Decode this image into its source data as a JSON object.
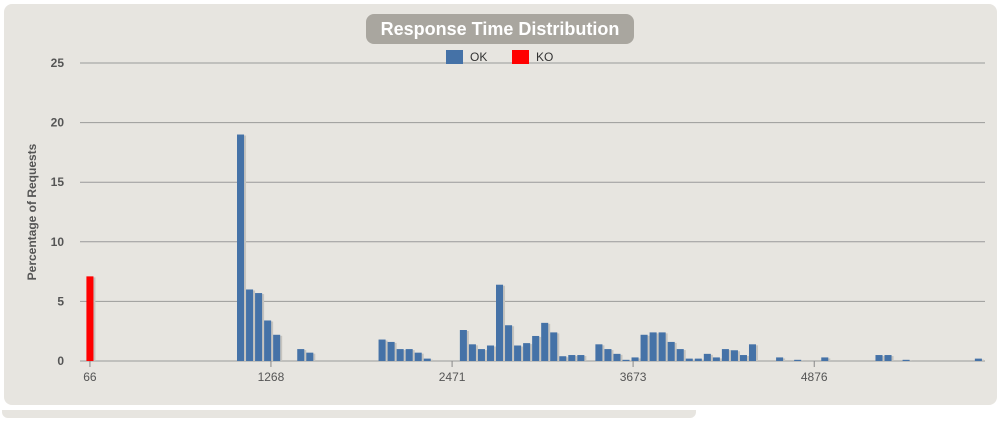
{
  "chart_data": {
    "type": "bar",
    "title": "Response Time Distribution",
    "ylabel": "Percentage of Requests",
    "xlabel": "",
    "ylim": [
      0,
      25
    ],
    "yticks": [
      "0",
      "5",
      "10",
      "15",
      "20",
      "25"
    ],
    "xtick_labels": [
      "66",
      "1268",
      "2471",
      "3673",
      "4876"
    ],
    "xtick_values": [
      66,
      1268,
      2471,
      3673,
      4876
    ],
    "xlim": [
      0,
      6010
    ],
    "bin_width": 60,
    "grid": true,
    "legend_position": "top-center",
    "series": [
      {
        "name": "OK",
        "color": "#4572a7",
        "points": [
          [
            1066,
            19
          ],
          [
            1126,
            6
          ],
          [
            1186,
            5.7
          ],
          [
            1246,
            3.4
          ],
          [
            1306,
            2.2
          ],
          [
            1466,
            1.0
          ],
          [
            1526,
            0.7
          ],
          [
            2006,
            1.8
          ],
          [
            2066,
            1.6
          ],
          [
            2126,
            1.0
          ],
          [
            2186,
            1.0
          ],
          [
            2246,
            0.7
          ],
          [
            2306,
            0.2
          ],
          [
            2546,
            2.6
          ],
          [
            2606,
            1.4
          ],
          [
            2666,
            1.0
          ],
          [
            2726,
            1.3
          ],
          [
            2786,
            6.4
          ],
          [
            2846,
            3.0
          ],
          [
            2906,
            1.3
          ],
          [
            2966,
            1.5
          ],
          [
            3026,
            2.1
          ],
          [
            3086,
            3.2
          ],
          [
            3146,
            2.4
          ],
          [
            3206,
            0.4
          ],
          [
            3266,
            0.5
          ],
          [
            3326,
            0.5
          ],
          [
            3446,
            1.4
          ],
          [
            3506,
            1.0
          ],
          [
            3566,
            0.6
          ],
          [
            3626,
            0.1
          ],
          [
            3686,
            0.3
          ],
          [
            3746,
            2.2
          ],
          [
            3806,
            2.4
          ],
          [
            3866,
            2.4
          ],
          [
            3926,
            1.6
          ],
          [
            3986,
            1.0
          ],
          [
            4046,
            0.2
          ],
          [
            4106,
            0.2
          ],
          [
            4166,
            0.6
          ],
          [
            4226,
            0.3
          ],
          [
            4286,
            1.0
          ],
          [
            4346,
            0.9
          ],
          [
            4406,
            0.5
          ],
          [
            4466,
            1.4
          ],
          [
            4646,
            0.3
          ],
          [
            4766,
            0.1
          ],
          [
            4946,
            0.3
          ],
          [
            5306,
            0.5
          ],
          [
            5366,
            0.5
          ],
          [
            5486,
            0.1
          ],
          [
            5966,
            0.2
          ]
        ]
      },
      {
        "name": "KO",
        "color": "#ff0000",
        "points": [
          [
            66,
            7.1
          ]
        ]
      }
    ]
  }
}
